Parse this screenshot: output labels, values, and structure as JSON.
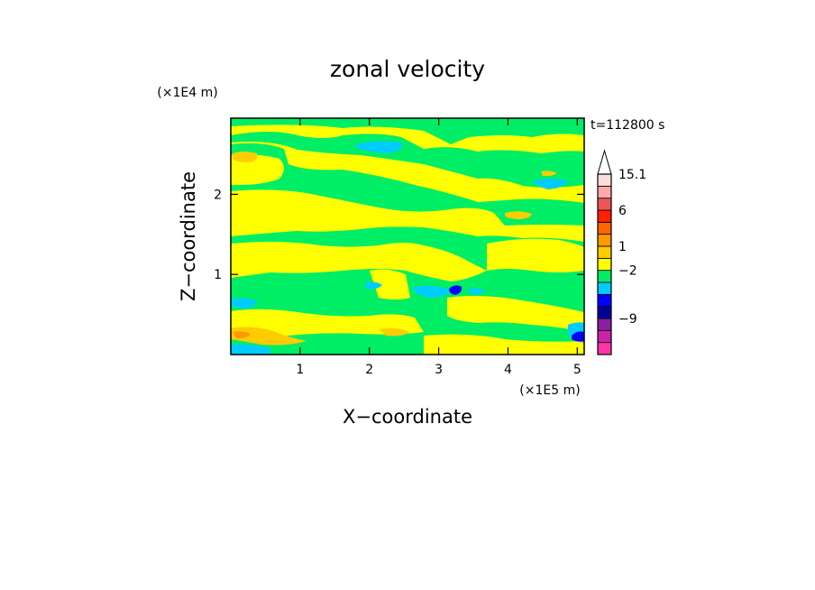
{
  "chart_data": {
    "type": "heatmap",
    "title": "zonal velocity",
    "xlabel": "X−coordinate",
    "ylabel": "Z−coordinate",
    "x_unit": "(×1E5 m)",
    "y_unit": "(×1E4 m)",
    "time_label": "t=112800 s",
    "xlim": [
      0,
      5.1
    ],
    "ylim": [
      0,
      2.95
    ],
    "x_ticks": [
      {
        "value": 1,
        "label": "1"
      },
      {
        "value": 2,
        "label": "2"
      },
      {
        "value": 3,
        "label": "3"
      },
      {
        "value": 4,
        "label": "4"
      },
      {
        "value": 5,
        "label": "5"
      }
    ],
    "y_ticks": [
      {
        "value": 1,
        "label": "1"
      },
      {
        "value": 2,
        "label": "2"
      }
    ],
    "colorbar": {
      "levels": [
        {
          "color": "#ff33aa"
        },
        {
          "color": "#cc22aa"
        },
        {
          "color": "#8a1ea0"
        },
        {
          "color": "#000099"
        },
        {
          "color": "#0000ff"
        },
        {
          "color": "#00ccff"
        },
        {
          "color": "#00ee66"
        },
        {
          "color": "#ffff00"
        },
        {
          "color": "#ffcc00"
        },
        {
          "color": "#ff9900"
        },
        {
          "color": "#ff6600"
        },
        {
          "color": "#ff2200"
        },
        {
          "color": "#ee5555"
        },
        {
          "color": "#ffaaaa"
        },
        {
          "color": "#ffdddd"
        }
      ],
      "labels": [
        {
          "value": "15.1",
          "level_index": 14
        },
        {
          "value": "6",
          "level_index": 11
        },
        {
          "value": "1",
          "level_index": 8
        },
        {
          "value": "−2",
          "level_index": 6
        },
        {
          "value": "−9",
          "level_index": 2
        }
      ]
    },
    "field_colors": {
      "green": "#00ee66",
      "yellow": "#ffff00",
      "orange": "#ffcc00",
      "deep_orange": "#ff9900",
      "cyan": "#00ccff",
      "blue": "#0000ff"
    }
  }
}
